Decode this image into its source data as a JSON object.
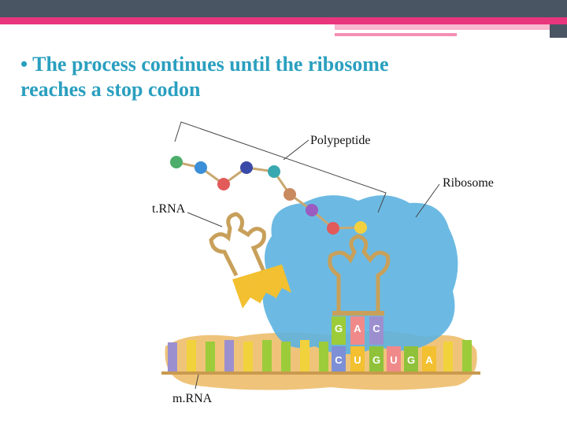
{
  "slide": {
    "title": "• The process continues until the ribosome reaches a stop codon"
  },
  "labels": {
    "polypeptide": "Polypeptide",
    "ribosome": "Ribosome",
    "trna": "t.RNA",
    "mrna": "m.RNA"
  },
  "anticodon": [
    "G",
    "A",
    "C"
  ],
  "codons": [
    "C",
    "U",
    "G",
    "U",
    "G",
    "A"
  ]
}
